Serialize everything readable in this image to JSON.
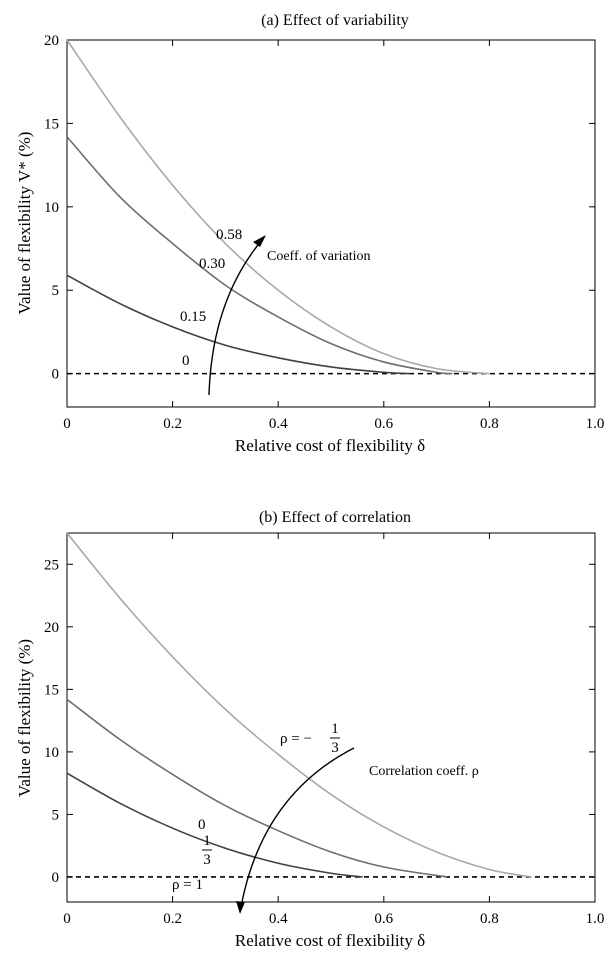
{
  "chart_data": [
    {
      "type": "line",
      "title": "(a) Effect of variability",
      "xlabel": "Relative cost of flexibility δ",
      "ylabel": "Value of flexibility V* (%)",
      "xlim": [
        0,
        1.0
      ],
      "ylim": [
        -2,
        20
      ],
      "xticks": [
        0,
        0.2,
        0.4,
        0.6,
        0.8,
        1.0
      ],
      "xtick_labels": [
        "0",
        "0.2",
        "0.4",
        "0.6",
        "0.8",
        "1.0"
      ],
      "yticks": [
        0,
        5,
        10,
        15,
        20
      ],
      "ytick_labels": [
        "0",
        "5",
        "10",
        "15",
        "20"
      ],
      "grid": false,
      "legend": "none",
      "series": [
        {
          "name": "0",
          "color": "#000000",
          "dashed": true,
          "x": [
            0,
            1.0
          ],
          "y": [
            0,
            0
          ]
        },
        {
          "name": "0.15",
          "color": "#404040",
          "dashed": false,
          "x": [
            0,
            0.1,
            0.2,
            0.3,
            0.4,
            0.5,
            0.6,
            0.65
          ],
          "y": [
            5.9,
            4.2,
            2.8,
            1.7,
            0.95,
            0.4,
            0.08,
            0
          ]
        },
        {
          "name": "0.30",
          "color": "#6e6e6e",
          "dashed": false,
          "x": [
            0,
            0.1,
            0.2,
            0.3,
            0.4,
            0.5,
            0.6,
            0.7,
            0.73
          ],
          "y": [
            14.2,
            10.6,
            7.8,
            5.3,
            3.4,
            1.8,
            0.7,
            0.08,
            0
          ]
        },
        {
          "name": "0.58",
          "color": "#a8a8a8",
          "dashed": false,
          "x": [
            0,
            0.1,
            0.2,
            0.3,
            0.4,
            0.5,
            0.6,
            0.7,
            0.8
          ],
          "y": [
            20.0,
            15.4,
            11.3,
            7.8,
            5.0,
            2.8,
            1.2,
            0.3,
            0
          ]
        }
      ],
      "annotations": [
        "Coeff. of variation"
      ]
    },
    {
      "type": "line",
      "title": "(b) Effect of correlation",
      "xlabel": "Relative cost of flexibility δ",
      "ylabel": "Value of flexibility (%)",
      "xlim": [
        0,
        1.0
      ],
      "ylim": [
        -2,
        27.5
      ],
      "xticks": [
        0,
        0.2,
        0.4,
        0.6,
        0.8,
        1.0
      ],
      "xtick_labels": [
        "0",
        "0.2",
        "0.4",
        "0.6",
        "0.8",
        "1.0"
      ],
      "yticks": [
        0,
        5,
        10,
        15,
        20,
        25
      ],
      "ytick_labels": [
        "0",
        "5",
        "10",
        "15",
        "20",
        "25"
      ],
      "grid": false,
      "legend": "none",
      "series": [
        {
          "name": "ρ = 1",
          "color": "#000000",
          "dashed": true,
          "x": [
            0,
            1.0
          ],
          "y": [
            0,
            0
          ]
        },
        {
          "name": "1/3",
          "color": "#404040",
          "dashed": false,
          "x": [
            0,
            0.1,
            0.2,
            0.3,
            0.4,
            0.5,
            0.56
          ],
          "y": [
            8.3,
            5.9,
            3.9,
            2.3,
            1.1,
            0.3,
            0
          ]
        },
        {
          "name": "0",
          "color": "#6e6e6e",
          "dashed": false,
          "x": [
            0,
            0.1,
            0.2,
            0.3,
            0.4,
            0.5,
            0.6,
            0.72
          ],
          "y": [
            14.2,
            11.0,
            8.2,
            5.7,
            3.7,
            2.0,
            0.8,
            0
          ]
        },
        {
          "name": "ρ = − 1/3",
          "color": "#a8a8a8",
          "dashed": false,
          "x": [
            0,
            0.1,
            0.2,
            0.3,
            0.4,
            0.5,
            0.6,
            0.7,
            0.8,
            0.88
          ],
          "y": [
            27.5,
            22.3,
            17.6,
            13.4,
            9.8,
            6.6,
            4.0,
            2.0,
            0.6,
            0
          ]
        }
      ],
      "annotations": [
        "Correlation coeff. ρ"
      ]
    }
  ],
  "labels_a": {
    "v058": "0.58",
    "v030": "0.30",
    "v015": "0.15",
    "v0": "0",
    "arrow_text": "Coeff. of variation"
  },
  "labels_b": {
    "rho_neg_prefix": "ρ = −",
    "rho_neg_num": "1",
    "rho_neg_den": "3",
    "zero": "0",
    "third_num": "1",
    "third_den": "3",
    "rho1": "ρ = 1",
    "arrow_text": "Correlation coeff. ρ"
  }
}
